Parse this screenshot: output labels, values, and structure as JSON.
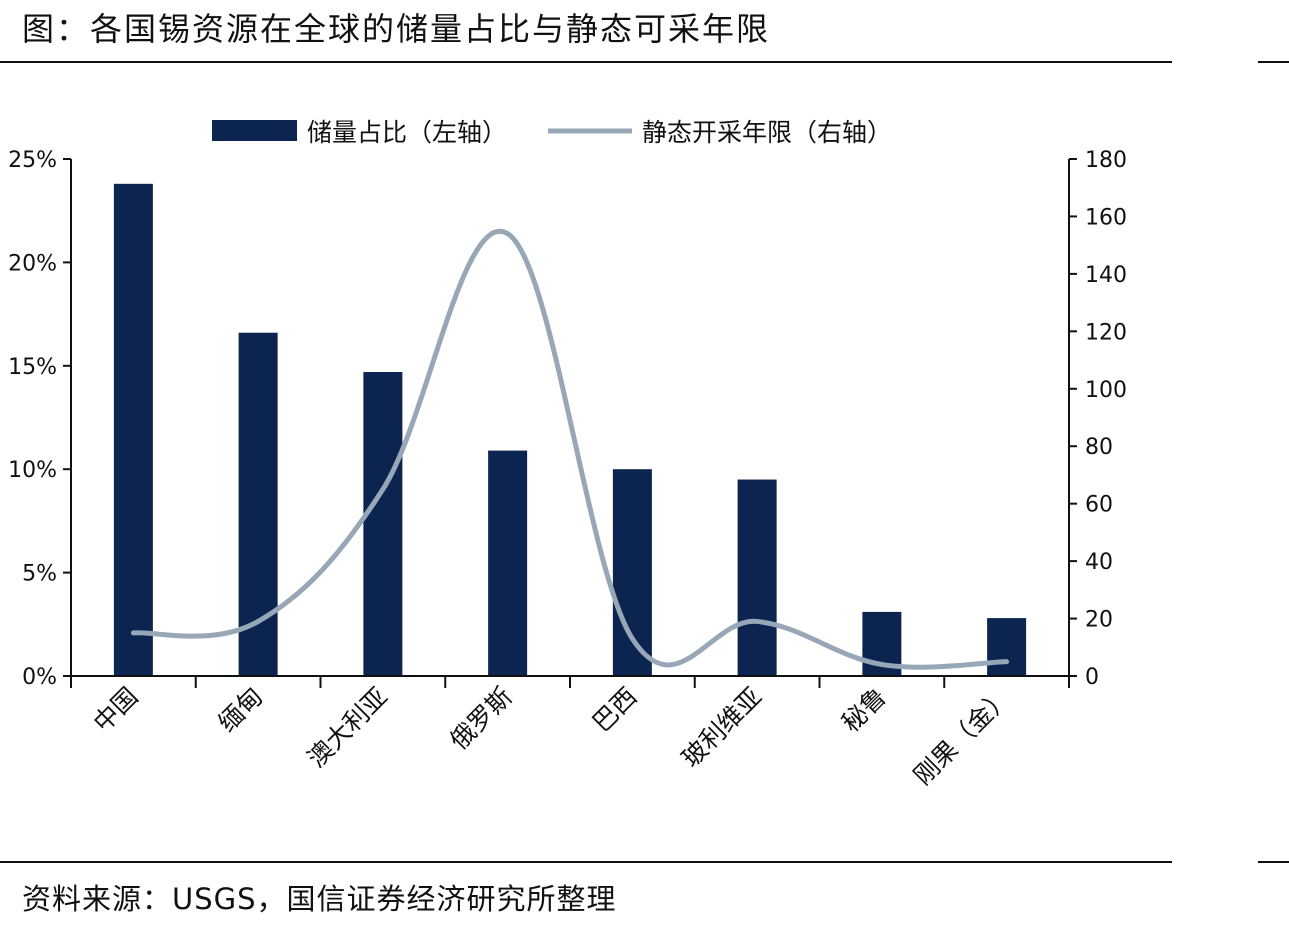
{
  "title": "图：各国锡资源在全球的储量占比与静态可采年限",
  "source": "资料来源：USGS，国信证券经济研究所整理",
  "colors": {
    "bar": "#0b2550",
    "line": "#97a7b8",
    "axis": "#111111"
  },
  "chart_data": {
    "type": "bar",
    "categories": [
      "中国",
      "缅甸",
      "澳大利亚",
      "俄罗斯",
      "巴西",
      "玻利维亚",
      "秘鲁",
      "刚果（金）"
    ],
    "series": [
      {
        "name": "储量占比（左轴）",
        "type": "bar",
        "axis": "left",
        "values": [
          0.238,
          0.166,
          0.147,
          0.109,
          0.1,
          0.095,
          0.031,
          0.028
        ]
      },
      {
        "name": "静态开采年限（右轴）",
        "type": "line",
        "axis": "right",
        "smooth": true,
        "values": [
          15,
          19,
          65,
          154,
          13,
          19,
          4,
          5
        ]
      }
    ],
    "y_left": {
      "min": 0,
      "max": 0.25,
      "ticks": [
        "0%",
        "5%",
        "10%",
        "15%",
        "20%",
        "25%"
      ]
    },
    "y_right": {
      "min": 0,
      "max": 180,
      "ticks": [
        "0",
        "20",
        "40",
        "60",
        "80",
        "100",
        "120",
        "140",
        "160",
        "180"
      ]
    },
    "grid": false,
    "legend_position": "top"
  }
}
